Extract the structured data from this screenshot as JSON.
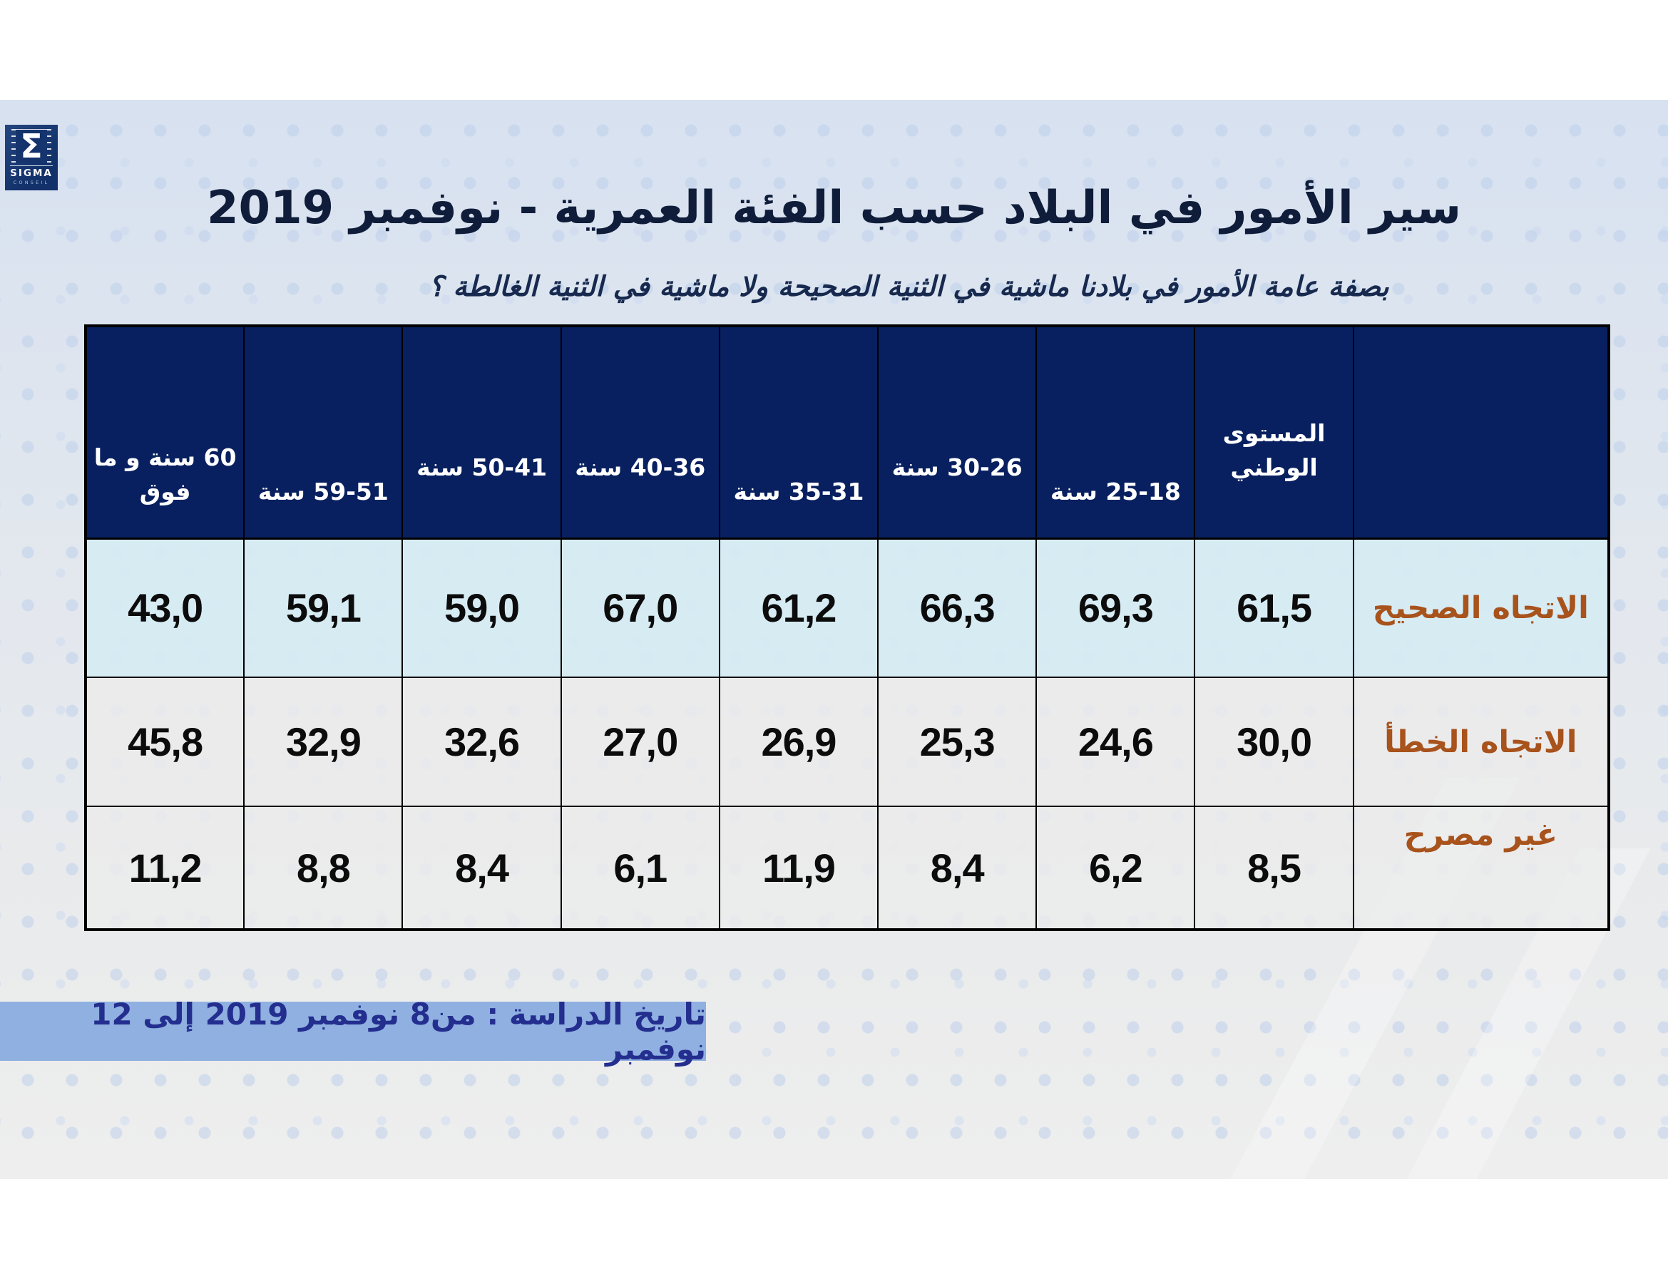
{
  "slide": {
    "logo": {
      "sigma_glyph": "Σ",
      "brand": "SIGMA",
      "brand_sub": "CONSEIL"
    },
    "title": "سير الأمور في البلاد حسب الفئة العمرية - نوفمبر 2019",
    "subtitle": "بصفة عامة الأمور في بلادنا ماشية في الثنية الصحيحة ولا ماشية في الثنية الغالطة ؟",
    "footer": "تاريخ الدراسة : من8  نوفمبر 2019 إلى 12 نوفمبر"
  },
  "colors": {
    "header_bg": "#08205f",
    "header_text": "#ffffff",
    "row1_bg": "#d6ebf3",
    "row_bg": "#ebebeb",
    "row_label_text": "#a8521c",
    "number_text": "#0c0c0c",
    "title_text": "#0f1d3a",
    "footer_bg": "#8fb0e0",
    "footer_text": "#232e8f",
    "table_border": "#000000",
    "panel_bg": "#dde4ee"
  },
  "chart_data": {
    "type": "table",
    "title": "سير الأمور في البلاد حسب الفئة العمرية - نوفمبر 2019",
    "question": "بصفة عامة الأمور في بلادنا ماشية في الثنية الصحيحة ولا ماشية في الثنية الغالطة ؟",
    "columns_rtl": [
      "",
      "المستوى الوطني",
      "25-18 سنة",
      "30-26 سنة",
      "35-31 سنة",
      "40-36 سنة",
      "50-41 سنة",
      "59-51 سنة",
      "60 سنة و ما فوق"
    ],
    "rows": [
      {
        "label": "الاتجاه الصحيح",
        "values": [
          "61,5",
          "69,3",
          "66,3",
          "61,2",
          "67,0",
          "59,0",
          "59,1",
          "43,0"
        ]
      },
      {
        "label": "الاتجاه الخطأ",
        "values": [
          "30,0",
          "24,6",
          "25,3",
          "26,9",
          "27,0",
          "32,6",
          "32,9",
          "45,8"
        ]
      },
      {
        "label": "غير مصرح",
        "values": [
          "8,5",
          "6,2",
          "8,4",
          "11,9",
          "6,1",
          "8,4",
          "8,8",
          "11,2"
        ]
      }
    ],
    "notes": "values are percentages; columns listed right-to-left as displayed (national level then age groups)"
  }
}
